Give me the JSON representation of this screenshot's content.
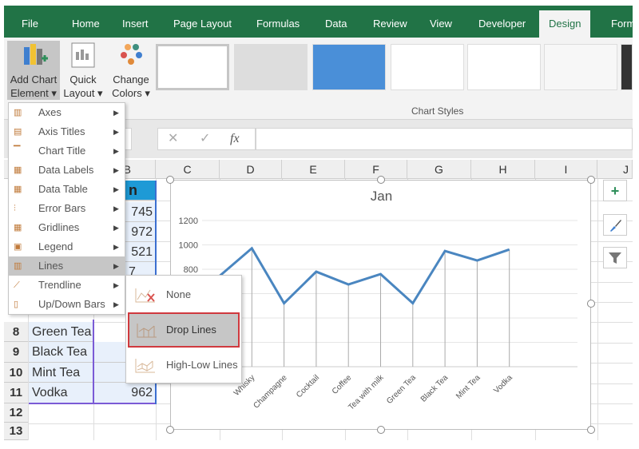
{
  "tabs": [
    "File",
    "Home",
    "Insert",
    "Page Layout",
    "Formulas",
    "Data",
    "Review",
    "View",
    "Developer",
    "Design",
    "Form"
  ],
  "active_tab": "Design",
  "ribbon": {
    "add_chart_element": [
      "Add Chart",
      "Element ▾"
    ],
    "quick_layout": [
      "Quick",
      "Layout ▾"
    ],
    "change_colors": [
      "Change",
      "Colors ▾"
    ],
    "group_label": "Chart Styles"
  },
  "formula_bar": {
    "cancel": "✕",
    "enter": "✓",
    "fx": "fx",
    "value": ""
  },
  "columns": [
    "C",
    "D",
    "E",
    "F",
    "G",
    "H",
    "I",
    "J"
  ],
  "col_b_partial": "B",
  "rows": [
    "8",
    "9",
    "10",
    "11",
    "12",
    "13"
  ],
  "cells": {
    "b1": "n",
    "b_values": [
      "745",
      "972",
      "521",
      "7"
    ],
    "a": {
      "8": "Green Tea",
      "9": "Black Tea",
      "10": "Mint Tea",
      "11": "Vodka"
    },
    "b11": "962"
  },
  "menu": {
    "items": [
      {
        "label": "Axes",
        "icon": "axes-icon"
      },
      {
        "label": "Axis Titles",
        "icon": "axis-titles-icon"
      },
      {
        "label": "Chart Title",
        "icon": "chart-title-icon"
      },
      {
        "label": "Data Labels",
        "icon": "data-labels-icon"
      },
      {
        "label": "Data Table",
        "icon": "data-table-icon"
      },
      {
        "label": "Error Bars",
        "icon": "error-bars-icon"
      },
      {
        "label": "Gridlines",
        "icon": "gridlines-icon"
      },
      {
        "label": "Legend",
        "icon": "legend-icon"
      },
      {
        "label": "Lines",
        "icon": "lines-icon"
      },
      {
        "label": "Trendline",
        "icon": "trendline-icon"
      },
      {
        "label": "Up/Down Bars",
        "icon": "up-down-bars-icon"
      }
    ],
    "highlighted": "Lines"
  },
  "submenu": {
    "items": [
      "None",
      "Drop Lines",
      "High-Low Lines"
    ],
    "selected": "Drop Lines"
  },
  "accent": "#217346",
  "highlight_border": "#d0393e",
  "series_color": "#4a86c0",
  "chart_data": {
    "type": "line",
    "title": "Jan",
    "categories": [
      "",
      "Whisky",
      "Champagne",
      "Cocktail",
      "Coffee",
      "Tea with milk",
      "Green Tea",
      "Black Tea",
      "Mint Tea",
      "Vodka"
    ],
    "values": [
      745,
      972,
      521,
      780,
      675,
      760,
      521,
      950,
      872,
      962
    ],
    "yticks": [
      "1200",
      "1000",
      "800"
    ],
    "ylim": [
      0,
      1200
    ],
    "grid": true,
    "drop_lines": true
  }
}
